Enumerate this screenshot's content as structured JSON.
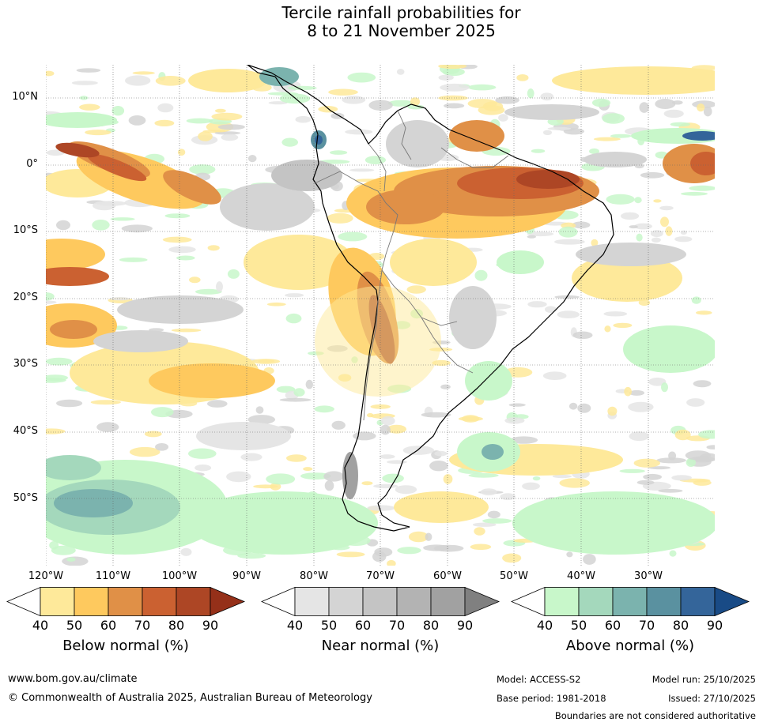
{
  "title": {
    "line1": "Tercile rainfall probabilities for",
    "line2": "8 to 21 November 2025"
  },
  "map": {
    "lat_labels": [
      "10°N",
      "0°",
      "10°S",
      "20°S",
      "30°S",
      "40°S",
      "50°S"
    ],
    "lon_labels": [
      "120°W",
      "110°W",
      "100°W",
      "90°W",
      "80°W",
      "70°W",
      "60°W",
      "50°W",
      "40°W",
      "30°W"
    ]
  },
  "legends": {
    "below": {
      "title": "Below normal (%)",
      "ticks": [
        "40",
        "50",
        "60",
        "70",
        "80",
        "90"
      ],
      "colors": [
        "#ffffff",
        "#fee99a",
        "#fec95e",
        "#e09047",
        "#cb6131",
        "#ad4625",
        "#953019"
      ]
    },
    "near": {
      "title": "Near normal (%)",
      "ticks": [
        "40",
        "50",
        "60",
        "70",
        "80",
        "90"
      ],
      "colors": [
        "#ffffff",
        "#e5e5e5",
        "#d4d4d4",
        "#c4c4c4",
        "#b3b3b3",
        "#a1a1a1",
        "#808080"
      ]
    },
    "above": {
      "title": "Above normal (%)",
      "ticks": [
        "40",
        "50",
        "60",
        "70",
        "80",
        "90"
      ],
      "colors": [
        "#ffffff",
        "#c8f7ca",
        "#a4d8bc",
        "#7bb3ae",
        "#5a91a0",
        "#34659a",
        "#194b86"
      ]
    }
  },
  "footer": {
    "website": "www.bom.gov.au/climate",
    "copyright": "© Commonwealth of Australia 2025, Australian Bureau of Meteorology",
    "model": "Model: ACCESS-S2",
    "base_period": "Base period: 1981-2018",
    "model_run": "Model run: 25/10/2025",
    "issued": "Issued: 27/10/2025",
    "disclaimer": "Boundaries are not considered authoritative"
  }
}
